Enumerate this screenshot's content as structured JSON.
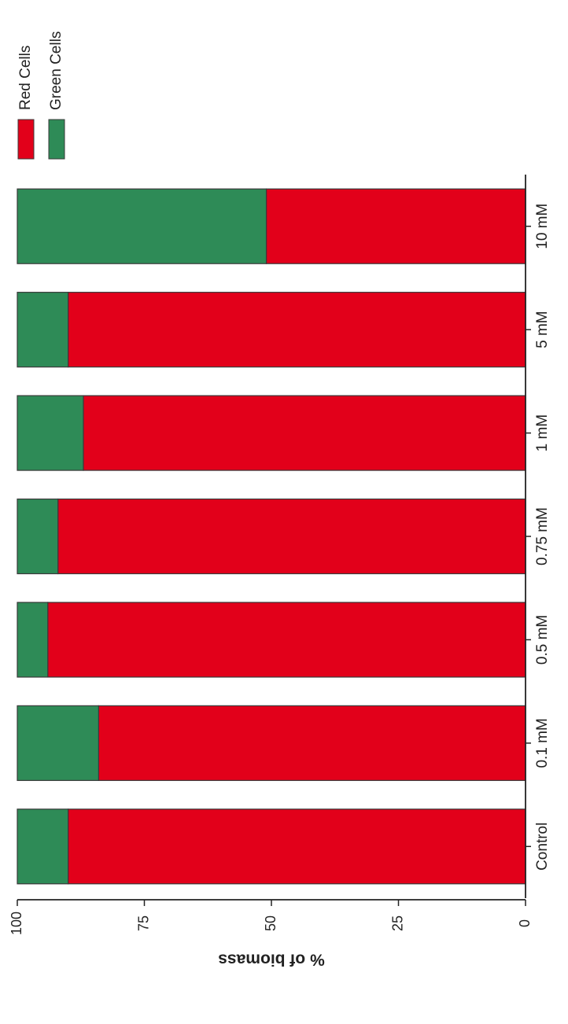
{
  "chart_data": {
    "type": "bar",
    "orientation": "horizontal-stacked",
    "categories": [
      "Control",
      "0.1 mM",
      "0.5 mM",
      "0.75 mM",
      "1 mM",
      "5 mM",
      "10 mM"
    ],
    "series": [
      {
        "name": "Red Cells",
        "color": "#e2001a",
        "values": [
          90,
          84,
          94,
          92,
          87,
          90,
          51
        ]
      },
      {
        "name": "Green Cells",
        "color": "#2e8b57",
        "values": [
          10,
          16,
          6,
          8,
          13,
          10,
          49
        ]
      }
    ],
    "ylabel": "% of biomass",
    "ylim": [
      0,
      100
    ],
    "ticks": [
      "0",
      "25",
      "50",
      "75",
      "100"
    ],
    "legend": "top"
  }
}
